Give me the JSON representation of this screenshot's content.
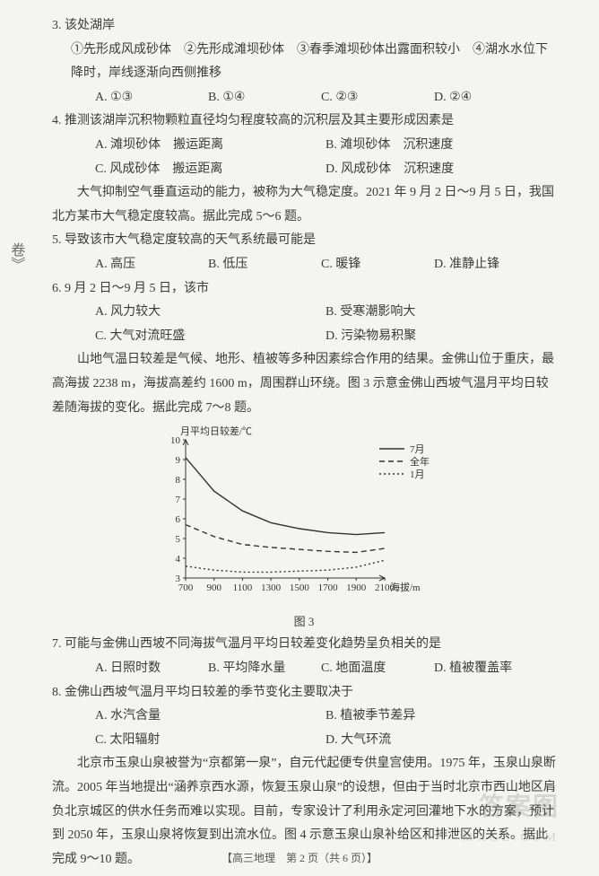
{
  "q3": {
    "stem": "3. 该处湖岸",
    "parts": "①先形成风成砂体　②先形成滩坝砂体　③春季滩坝砂体出露面积较小　④湖水水位下降时，岸线逐渐向西侧推移",
    "opts": {
      "A": "A. ①③",
      "B": "B. ①④",
      "C": "C. ②③",
      "D": "D. ②④"
    }
  },
  "q4": {
    "stem": "4. 推测该湖岸沉积物颗粒直径均匀程度较高的沉积层及其主要形成因素是",
    "opts": {
      "A": "A. 滩坝砂体　搬运距离",
      "B": "B. 滩坝砂体　沉积速度",
      "C": "C. 风成砂体　搬运距离",
      "D": "D. 风成砂体　沉积速度"
    }
  },
  "passage56": "大气抑制空气垂直运动的能力，被称为大气稳定度。2021 年 9 月 2 日～9 月 5 日，我国北方某市大气稳定度较高。据此完成 5～6 题。",
  "q5": {
    "stem": "5. 导致该市大气稳定度较高的天气系统最可能是",
    "opts": {
      "A": "A. 高压",
      "B": "B. 低压",
      "C": "C. 暖锋",
      "D": "D. 准静止锋"
    }
  },
  "q6": {
    "stem": "6. 9 月 2 日～9 月 5 日，该市",
    "opts": {
      "A": "A. 风力较大",
      "B": "B. 受寒潮影响大",
      "C": "C. 大气对流旺盛",
      "D": "D. 污染物易积聚"
    }
  },
  "passage78": "山地气温日较差是气候、地形、植被等多种因素综合作用的结果。金佛山位于重庆，最高海拔 2238 m，海拔高差约 1600 m，周围群山环绕。图 3 示意金佛山西坡气温月平均日较差随海拔的变化。据此完成 7～8 题。",
  "chart": {
    "title": "月平均日较差/℃",
    "xlabel": "海拔/m",
    "caption": "图 3",
    "x_ticks": [
      700,
      900,
      1100,
      1300,
      1500,
      1700,
      1900,
      2100
    ],
    "y_ticks": [
      3,
      4,
      5,
      6,
      7,
      8,
      9,
      10
    ],
    "xlim": [
      700,
      2100
    ],
    "ylim": [
      3,
      10
    ],
    "legend": [
      "7月",
      "全年",
      "1月"
    ],
    "series": {
      "jul": {
        "x": [
          700,
          900,
          1100,
          1300,
          1500,
          1700,
          1900,
          2100
        ],
        "y": [
          9.1,
          7.4,
          6.4,
          5.8,
          5.5,
          5.3,
          5.2,
          5.3
        ],
        "dash": "",
        "color": "#333"
      },
      "year": {
        "x": [
          700,
          900,
          1100,
          1300,
          1500,
          1700,
          1900,
          2100
        ],
        "y": [
          5.7,
          5.1,
          4.7,
          4.55,
          4.45,
          4.35,
          4.3,
          4.5
        ],
        "dash": "6,4",
        "color": "#333"
      },
      "jan": {
        "x": [
          700,
          900,
          1100,
          1300,
          1500,
          1700,
          1900,
          2100
        ],
        "y": [
          3.6,
          3.4,
          3.3,
          3.3,
          3.35,
          3.4,
          3.55,
          3.9
        ],
        "dash": "2,3",
        "color": "#333"
      }
    },
    "axis_color": "#333",
    "font_size": 11
  },
  "q7": {
    "stem": "7. 可能与金佛山西坡不同海拔气温月平均日较差变化趋势呈负相关的是",
    "opts": {
      "A": "A. 日照时数",
      "B": "B. 平均降水量",
      "C": "C. 地面温度",
      "D": "D. 植被覆盖率"
    }
  },
  "q8": {
    "stem": "8. 金佛山西坡气温月平均日较差的季节变化主要取决于",
    "opts": {
      "A": "A. 水汽含量",
      "B": "B. 植被季节差异",
      "C": "C. 太阳辐射",
      "D": "D. 大气环流"
    }
  },
  "passage910": "北京市玉泉山泉被誉为“京都第一泉”，自元代起便专供皇宫使用。1975 年，玉泉山泉断流。2005 年当地提出“涵养京西水源，恢复玉泉山泉”的设想，但由于当时北京市西山地区肩负北京城区的供水任务而难以实现。目前，专家设计了利用永定河回灌地下水的方案，预计到 2050 年，玉泉山泉将恢复到出流水位。图 4 示意玉泉山泉补给区和排泄区的关系。据此完成 9～10 题。",
  "sideways": "卷》",
  "footer": {
    "left": "【高三地理　第 2 页（共 6 页）】",
    "right": ""
  },
  "watermark": "答案图",
  "watermark_sub": "MXGE.COM"
}
